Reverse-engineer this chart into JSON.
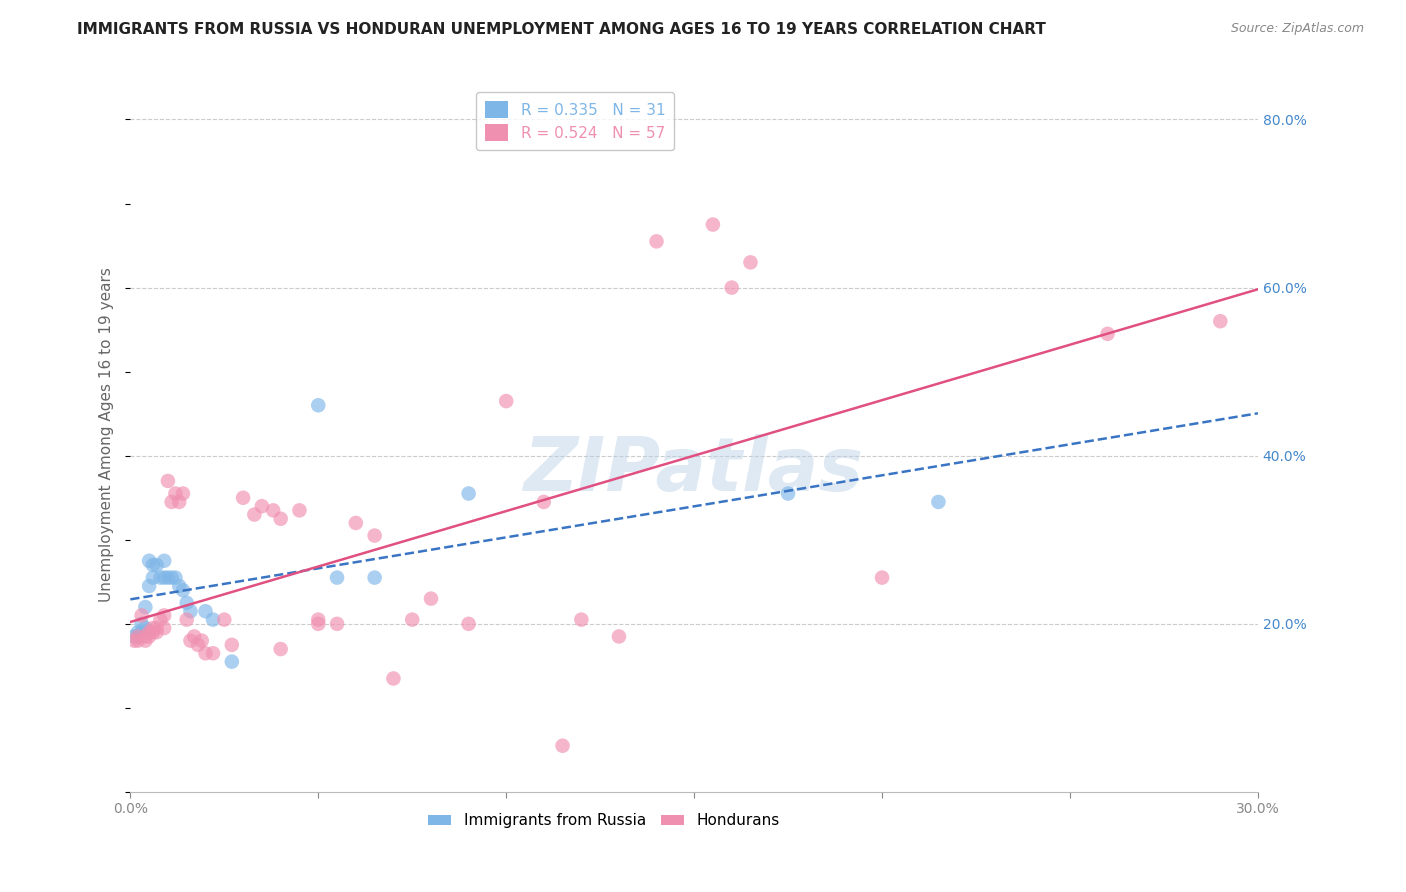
{
  "title": "IMMIGRANTS FROM RUSSIA VS HONDURAN UNEMPLOYMENT AMONG AGES 16 TO 19 YEARS CORRELATION CHART",
  "source": "Source: ZipAtlas.com",
  "ylabel": "Unemployment Among Ages 16 to 19 years",
  "xlim": [
    0.0,
    0.3
  ],
  "ylim": [
    0.0,
    0.85
  ],
  "right_yticks": [
    0.2,
    0.4,
    0.6,
    0.8
  ],
  "right_yticklabels": [
    "20.0%",
    "40.0%",
    "60.0%",
    "80.0%"
  ],
  "xticks": [
    0.0,
    0.05,
    0.1,
    0.15,
    0.2,
    0.25,
    0.3
  ],
  "xticklabels": [
    "0.0%",
    "",
    "",
    "",
    "",
    "",
    "30.0%"
  ],
  "watermark": "ZIPatlas",
  "legend_entries": [
    {
      "label": "R = 0.335   N = 31",
      "color": "#7eb6e8"
    },
    {
      "label": "R = 0.524   N = 57",
      "color": "#f090b0"
    }
  ],
  "russia_color": "#7eb6e8",
  "honduras_color": "#f090b0",
  "russia_line_color": "#3a75c4",
  "honduras_line_color": "#e05080",
  "russia_points": [
    [
      0.001,
      0.185
    ],
    [
      0.002,
      0.185
    ],
    [
      0.002,
      0.19
    ],
    [
      0.003,
      0.19
    ],
    [
      0.003,
      0.2
    ],
    [
      0.004,
      0.195
    ],
    [
      0.004,
      0.22
    ],
    [
      0.005,
      0.245
    ],
    [
      0.005,
      0.275
    ],
    [
      0.006,
      0.255
    ],
    [
      0.006,
      0.27
    ],
    [
      0.007,
      0.27
    ],
    [
      0.008,
      0.255
    ],
    [
      0.009,
      0.275
    ],
    [
      0.009,
      0.255
    ],
    [
      0.01,
      0.255
    ],
    [
      0.011,
      0.255
    ],
    [
      0.012,
      0.255
    ],
    [
      0.013,
      0.245
    ],
    [
      0.014,
      0.24
    ],
    [
      0.015,
      0.225
    ],
    [
      0.016,
      0.215
    ],
    [
      0.02,
      0.215
    ],
    [
      0.022,
      0.205
    ],
    [
      0.027,
      0.155
    ],
    [
      0.05,
      0.46
    ],
    [
      0.055,
      0.255
    ],
    [
      0.065,
      0.255
    ],
    [
      0.09,
      0.355
    ],
    [
      0.175,
      0.355
    ],
    [
      0.215,
      0.345
    ]
  ],
  "honduras_points": [
    [
      0.001,
      0.18
    ],
    [
      0.002,
      0.18
    ],
    [
      0.002,
      0.185
    ],
    [
      0.003,
      0.21
    ],
    [
      0.004,
      0.18
    ],
    [
      0.004,
      0.185
    ],
    [
      0.005,
      0.185
    ],
    [
      0.005,
      0.19
    ],
    [
      0.006,
      0.195
    ],
    [
      0.006,
      0.19
    ],
    [
      0.007,
      0.195
    ],
    [
      0.007,
      0.19
    ],
    [
      0.008,
      0.205
    ],
    [
      0.009,
      0.21
    ],
    [
      0.009,
      0.195
    ],
    [
      0.01,
      0.37
    ],
    [
      0.011,
      0.345
    ],
    [
      0.012,
      0.355
    ],
    [
      0.013,
      0.345
    ],
    [
      0.014,
      0.355
    ],
    [
      0.015,
      0.205
    ],
    [
      0.016,
      0.18
    ],
    [
      0.017,
      0.185
    ],
    [
      0.018,
      0.175
    ],
    [
      0.019,
      0.18
    ],
    [
      0.02,
      0.165
    ],
    [
      0.022,
      0.165
    ],
    [
      0.025,
      0.205
    ],
    [
      0.027,
      0.175
    ],
    [
      0.03,
      0.35
    ],
    [
      0.033,
      0.33
    ],
    [
      0.035,
      0.34
    ],
    [
      0.038,
      0.335
    ],
    [
      0.04,
      0.325
    ],
    [
      0.04,
      0.17
    ],
    [
      0.045,
      0.335
    ],
    [
      0.05,
      0.205
    ],
    [
      0.05,
      0.2
    ],
    [
      0.055,
      0.2
    ],
    [
      0.06,
      0.32
    ],
    [
      0.065,
      0.305
    ],
    [
      0.07,
      0.135
    ],
    [
      0.075,
      0.205
    ],
    [
      0.08,
      0.23
    ],
    [
      0.09,
      0.2
    ],
    [
      0.1,
      0.465
    ],
    [
      0.11,
      0.345
    ],
    [
      0.115,
      0.055
    ],
    [
      0.12,
      0.205
    ],
    [
      0.13,
      0.185
    ],
    [
      0.14,
      0.655
    ],
    [
      0.155,
      0.675
    ],
    [
      0.16,
      0.6
    ],
    [
      0.165,
      0.63
    ],
    [
      0.2,
      0.255
    ],
    [
      0.26,
      0.545
    ],
    [
      0.29,
      0.56
    ]
  ],
  "background_color": "#ffffff",
  "grid_color": "#cccccc",
  "title_fontsize": 11,
  "axis_label_fontsize": 11,
  "tick_fontsize": 10,
  "legend_fontsize": 11
}
